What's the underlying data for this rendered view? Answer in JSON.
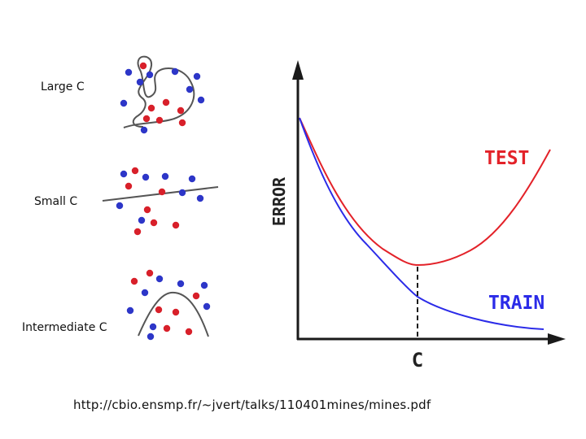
{
  "panels": [
    {
      "key": "large",
      "label": "Large C"
    },
    {
      "key": "small",
      "label": "Small C"
    },
    {
      "key": "intermediate",
      "label": "Intermediate C"
    }
  ],
  "chart_data": {
    "type": "line",
    "title": "",
    "ylabel": "ERROR",
    "xlabel": "C",
    "series": [
      {
        "name": "TEST",
        "color": "#e32229",
        "shape": "U-shaped: decreases then increases, minimum at C"
      },
      {
        "name": "TRAIN",
        "color": "#2b2be8",
        "shape": "monotonically decreasing"
      }
    ],
    "marker": {
      "label": "C",
      "style": "dashed vertical at test-error minimum"
    }
  },
  "colors": {
    "red_point": "#d8202a",
    "blue_point": "#2d36c8",
    "boundary": "#555555",
    "axis": "#1a1a1a"
  },
  "footer": {
    "url": "http://cbio.ensmp.fr/~jvert/talks/110401mines/mines.pdf"
  }
}
